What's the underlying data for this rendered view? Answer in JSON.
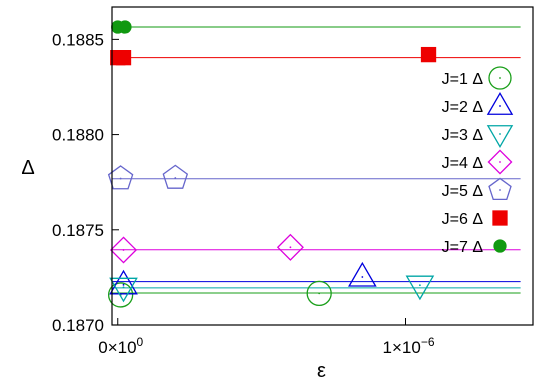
{
  "chart_data": {
    "type": "scatter",
    "xlabel": "ε",
    "ylabel": "Δ",
    "xlim": [
      -2e-08,
      1.45e-06
    ],
    "ylim": [
      0.187,
      0.18867
    ],
    "y_ticks": [
      {
        "value": 0.187,
        "label": "0.1870"
      },
      {
        "value": 0.1875,
        "label": "0.1875"
      },
      {
        "value": 0.188,
        "label": "0.1880"
      },
      {
        "value": 0.1885,
        "label": "0.1885"
      }
    ],
    "x_ticks": [
      {
        "value": 0,
        "label": "0×10",
        "exp": "0"
      },
      {
        "value": 1e-06,
        "label": "1×10",
        "exp": "−6"
      }
    ],
    "legend_position": "right",
    "series": [
      {
        "name": "J=1 Δ",
        "color": "#1a9f1a",
        "marker": "circle",
        "fill": false,
        "points": [
          [
            1e-08,
            0.187158
          ],
          [
            7e-07,
            0.187166
          ]
        ],
        "fit": 0.187168
      },
      {
        "name": "J=2 Δ",
        "color": "#0000dd",
        "marker": "triangle-up",
        "fill": false,
        "points": [
          [
            2e-08,
            0.187211
          ],
          [
            8.5e-07,
            0.187252
          ]
        ],
        "fit": 0.187228
      },
      {
        "name": "J=3 Δ",
        "color": "#00a6a6",
        "marker": "triangle-down",
        "fill": false,
        "points": [
          [
            2e-08,
            0.187198
          ],
          [
            1.05e-06,
            0.187209
          ]
        ],
        "fit": 0.187195
      },
      {
        "name": "J=4 Δ",
        "color": "#dd00dd",
        "marker": "diamond",
        "fill": false,
        "points": [
          [
            2e-08,
            0.187394
          ],
          [
            6e-07,
            0.187408
          ]
        ],
        "fit": 0.187395
      },
      {
        "name": "J=5 Δ",
        "color": "#6666cc",
        "marker": "pentagon",
        "fill": false,
        "points": [
          [
            1e-08,
            0.187769
          ],
          [
            2e-07,
            0.187772
          ]
        ],
        "fit": 0.187768
      },
      {
        "name": "J=6 Δ",
        "color": "#ee0000",
        "marker": "square",
        "fill": true,
        "points": [
          [
            0,
            0.188404
          ],
          [
            2e-08,
            0.188404
          ],
          [
            1.08e-06,
            0.18842
          ]
        ],
        "fit": 0.188404
      },
      {
        "name": "J=7 Δ",
        "color": "#119911",
        "marker": "circle",
        "fill": true,
        "points": [
          [
            0,
            0.188565
          ],
          [
            2.5e-08,
            0.188565
          ]
        ],
        "fit": 0.188565
      }
    ]
  }
}
